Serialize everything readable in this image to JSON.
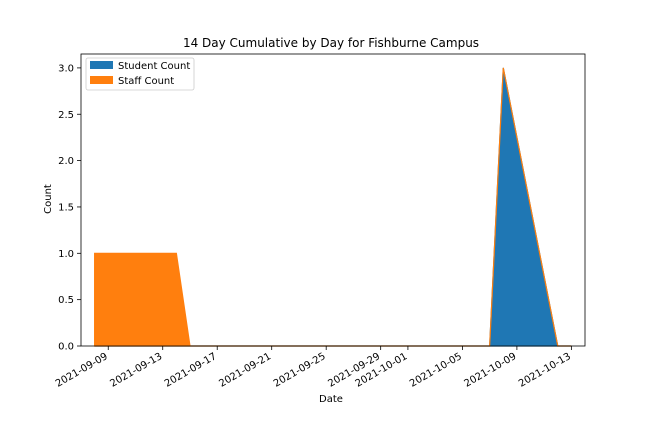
{
  "chart_data": {
    "type": "area",
    "stacked": true,
    "title": "14 Day Cumulative by Day for Fishburne Campus",
    "xlabel": "Date",
    "ylabel": "Count",
    "xlim": [
      "2021-09-07",
      "2021-10-14"
    ],
    "ylim": [
      0,
      3.15
    ],
    "x_ticks": [
      "2021-09-09",
      "2021-09-13",
      "2021-09-17",
      "2021-09-21",
      "2021-09-25",
      "2021-09-29",
      "2021-10-01",
      "2021-10-05",
      "2021-10-09",
      "2021-10-13"
    ],
    "y_ticks": [
      "0.0",
      "0.5",
      "1.0",
      "1.5",
      "2.0",
      "2.5",
      "3.0"
    ],
    "y_tick_values": [
      0,
      0.5,
      1,
      1.5,
      2,
      2.5,
      3
    ],
    "legend_placement": "top-left",
    "grid": false,
    "x": [
      "2021-09-08",
      "2021-09-14",
      "2021-09-15",
      "2021-10-07",
      "2021-10-08",
      "2021-10-12",
      "2021-10-13"
    ],
    "series": [
      {
        "name": "Student Count",
        "color": "#1f77b4",
        "values": [
          0,
          0,
          0,
          0,
          3,
          0,
          0
        ]
      },
      {
        "name": "Staff Count",
        "color": "#ff7f0e",
        "values": [
          1,
          1,
          0,
          0,
          0,
          0,
          0
        ]
      }
    ]
  }
}
